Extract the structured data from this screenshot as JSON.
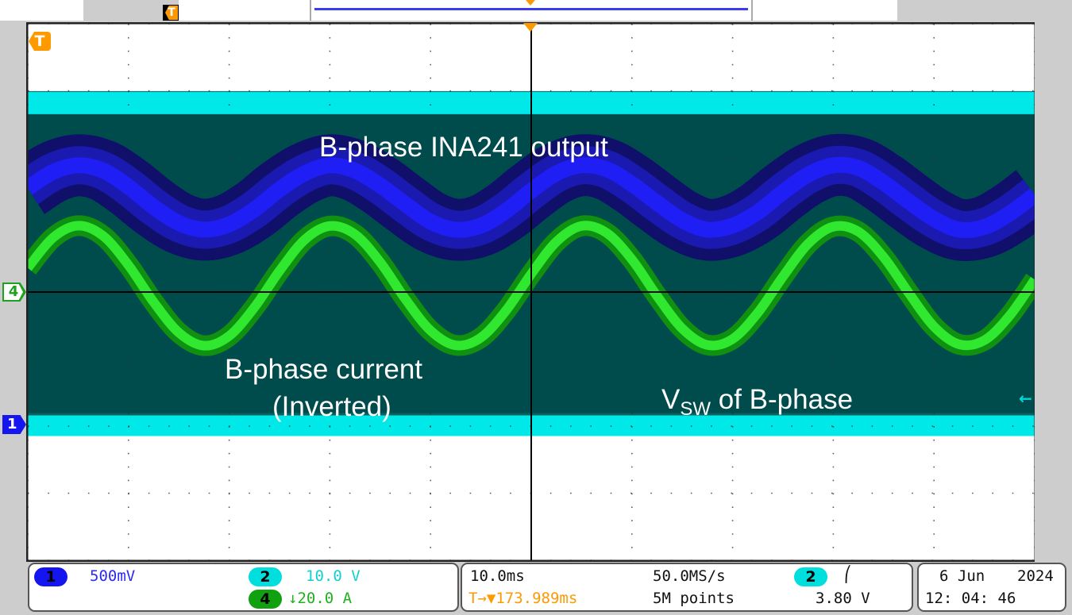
{
  "annotations": {
    "ina241": "B-phase INA241 output",
    "current_line1": "B-phase current",
    "current_line2": "(Inverted)",
    "vsw_main": "V",
    "vsw_sub": "SW",
    "vsw_rest": " of B-phase"
  },
  "markers": {
    "trigger": "T",
    "ch4": "4",
    "ch1": "1",
    "trigger_level_icon": "arrow-left-icon"
  },
  "status": {
    "ch1_num": "1",
    "ch1_scale": "500mV",
    "ch2_num": "2",
    "ch2_scale": "10.0 V",
    "ch4_num": "4",
    "ch4_scale": "↓20.0 A",
    "timebase": "10.0ms",
    "trigger_delay": "T→▼173.989ms",
    "sample_rate": "50.0MS/s",
    "record_length": "5M points",
    "trig_source": "2",
    "trig_slope": "⎛",
    "trig_level": "3.80 V",
    "date_day": "6 Jun",
    "date_year": "2024",
    "time": "12: 04: 46"
  },
  "colors": {
    "ch1": "#1010f0",
    "ch2": "#00e8e8",
    "ch4": "#20d020",
    "trigger": "#ff9900",
    "vsw_fill": "#004c4c",
    "background": "#ffffff"
  },
  "chart_data": {
    "type": "line",
    "grid": true,
    "x_divisions": 10,
    "y_divisions": 8,
    "x_unit": "ms",
    "xlim": [
      -50,
      50
    ],
    "x": [
      -50,
      -47.5,
      -45,
      -42.5,
      -40,
      -37.5,
      -35,
      -32.5,
      -30,
      -27.5,
      -25,
      -22.5,
      -20,
      -17.5,
      -15,
      -12.5,
      -10,
      -7.5,
      -5,
      -2.5,
      0,
      2.5,
      5,
      7.5,
      10,
      12.5,
      15,
      17.5,
      20,
      22.5,
      25,
      27.5,
      30,
      32.5,
      35,
      37.5,
      40,
      42.5,
      45,
      47.5,
      50
    ],
    "series": [
      {
        "channel": "1",
        "unit": "V",
        "scale_per_div": 0.5,
        "color": "#1010f0",
        "values": [
          1.8,
          1.92,
          1.97,
          1.93,
          1.81,
          1.66,
          1.54,
          1.49,
          1.53,
          1.64,
          1.79,
          1.91,
          1.97,
          1.93,
          1.82,
          1.68,
          1.55,
          1.49,
          1.52,
          1.63,
          1.78,
          1.91,
          1.97,
          1.94,
          1.83,
          1.69,
          1.56,
          1.49,
          1.52,
          1.62,
          1.77,
          1.9,
          1.97,
          1.95,
          1.84,
          1.7,
          1.57,
          1.49,
          1.51,
          1.61,
          1.75
        ]
      },
      {
        "channel": "4",
        "unit": "A",
        "scale_per_div": 20,
        "inverted": true,
        "color": "#20d020",
        "values": [
          7.2,
          16.2,
          19.8,
          16.7,
          8.0,
          -3.0,
          -12.1,
          -16.0,
          -13.1,
          -4.6,
          6.3,
          15.6,
          19.7,
          17.2,
          8.9,
          -2.1,
          -11.5,
          -15.9,
          -13.6,
          -5.5,
          5.4,
          15.0,
          19.7,
          17.6,
          9.7,
          -1.2,
          -10.9,
          -15.8,
          -14.0,
          -6.2,
          4.6,
          14.4,
          19.5,
          18.0,
          10.4,
          -0.3,
          -10.3,
          -15.6,
          -14.4,
          -7.1,
          3.7
        ]
      },
      {
        "channel": "2",
        "unit": "V",
        "scale_per_div": 10,
        "color": "#00e8e8",
        "switching": true,
        "low": 0,
        "high": 48
      }
    ]
  }
}
